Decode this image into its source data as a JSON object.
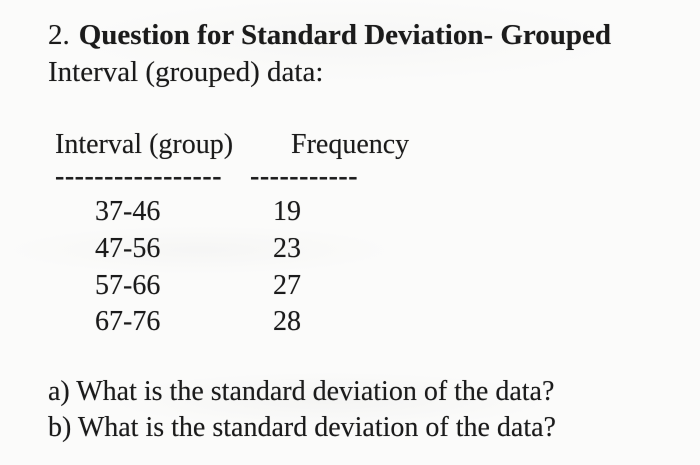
{
  "title": {
    "number": "2.",
    "bold_text": "Question for Standard Deviation- Grouped",
    "line2": "Interval (grouped) data:"
  },
  "table": {
    "headers": {
      "interval": "Interval (group)",
      "frequency": "Frequency"
    },
    "separator": {
      "interval": "-----------------",
      "frequency": "-----------"
    },
    "rows": [
      {
        "interval": "37-46",
        "frequency": "19"
      },
      {
        "interval": "47-56",
        "frequency": "23"
      },
      {
        "interval": "57-66",
        "frequency": "27"
      },
      {
        "interval": "67-76",
        "frequency": "28"
      }
    ]
  },
  "questions": [
    "a) What is the standard deviation of the data?",
    "b) What is the standard deviation of the data?"
  ]
}
